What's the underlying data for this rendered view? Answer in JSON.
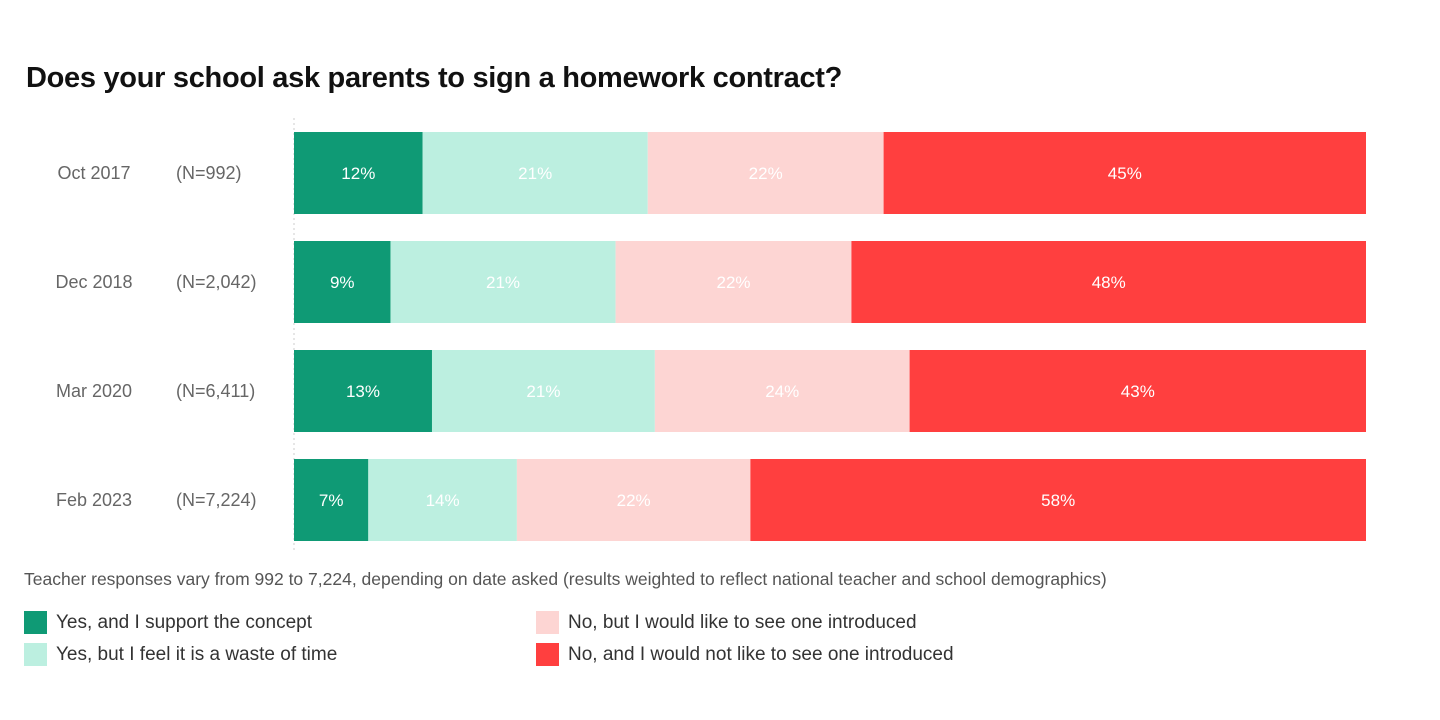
{
  "chart_data": {
    "type": "bar",
    "orientation": "horizontal",
    "stacked": true,
    "normalized": true,
    "title": "Does your school ask parents to sign a homework contract?",
    "categories": [
      "Oct 2017",
      "Dec 2018",
      "Mar 2020",
      "Feb 2023"
    ],
    "sample_sizes": [
      "(N=992)",
      "(N=2,042)",
      "(N=6,411)",
      "(N=7,224)"
    ],
    "series": [
      {
        "name": "Yes, and I support the concept",
        "color": "#0f9a75",
        "values": [
          12,
          9,
          13,
          7
        ]
      },
      {
        "name": "Yes, but I feel it is a waste of time",
        "color": "#bcefe0",
        "values": [
          21,
          21,
          21,
          14
        ]
      },
      {
        "name": "No, but I would like to see one introduced",
        "color": "#fdd5d3",
        "values": [
          22,
          22,
          24,
          22
        ]
      },
      {
        "name": "No, and I would not like to see one introduced",
        "color": "#ff3f3f",
        "values": [
          45,
          48,
          43,
          58
        ]
      }
    ],
    "value_format": "percent",
    "grid": false,
    "legend_position": "bottom",
    "note": "Teacher responses vary from 992 to 7,224, depending on date asked (results weighted to reflect national teacher and school demographics)"
  }
}
